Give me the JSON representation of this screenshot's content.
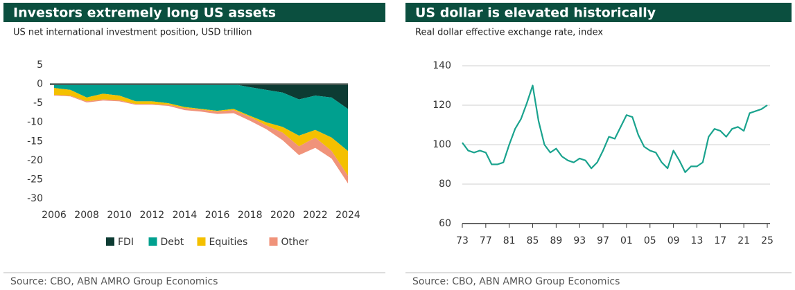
{
  "chart_data": [
    {
      "type": "area",
      "title": "Investors extremely long US assets",
      "subtitle": "US net international investment position, USD trillion",
      "source": "Source: CBO, ABN AMRO Group Economics",
      "x": [
        2006,
        2007,
        2008,
        2009,
        2010,
        2011,
        2012,
        2013,
        2014,
        2015,
        2016,
        2017,
        2018,
        2019,
        2020,
        2021,
        2022,
        2023,
        2024
      ],
      "series": [
        {
          "name": "FDI",
          "color": "#0d3b33",
          "values": [
            0,
            0,
            0,
            0,
            0,
            0,
            0,
            0,
            0,
            0,
            0,
            0,
            -0.8,
            -1.5,
            -2.2,
            -4,
            -3,
            -3.5,
            -6.5
          ]
        },
        {
          "name": "Debt",
          "color": "#00a08f",
          "values": [
            -1,
            -1.5,
            -3.5,
            -2.5,
            -3,
            -4.5,
            -4.5,
            -5,
            -6,
            -6.5,
            -7,
            -6.5,
            -7.5,
            -8.5,
            -9,
            -9.5,
            -9,
            -10.5,
            -11
          ]
        },
        {
          "name": "Equities",
          "color": "#f4c000",
          "values": [
            -1.8,
            -1.5,
            -1,
            -1.5,
            -1.2,
            -0.7,
            -0.7,
            -0.4,
            -0.3,
            -0.2,
            -0.2,
            -0.3,
            -0.3,
            -0.8,
            -1.5,
            -2.8,
            -2,
            -3.5,
            -6.5
          ]
        },
        {
          "name": "Other",
          "color": "#f0937a",
          "values": [
            -0.2,
            -0.2,
            -0.3,
            -0.3,
            -0.3,
            -0.2,
            -0.2,
            -0.3,
            -0.5,
            -0.5,
            -0.6,
            -0.8,
            -1,
            -1,
            -2,
            -2.3,
            -2.7,
            -2,
            -2
          ]
        }
      ],
      "xlim": [
        2006,
        2024
      ],
      "xticks": [
        2006,
        2008,
        2010,
        2012,
        2014,
        2016,
        2018,
        2020,
        2022,
        2024
      ],
      "ylim": [
        -30,
        5
      ],
      "yticks": [
        5,
        0,
        -5,
        -10,
        -15,
        -20,
        -25,
        -30
      ],
      "grid": false,
      "legend": "bottom"
    },
    {
      "type": "line",
      "title": "US dollar is elevated historically",
      "subtitle": "Real dollar effective exchange rate, index",
      "source": "Source: CBO, ABN AMRO Group Economics",
      "x": [
        1973,
        1974,
        1975,
        1976,
        1977,
        1978,
        1979,
        1980,
        1981,
        1982,
        1983,
        1984,
        1985,
        1986,
        1987,
        1988,
        1989,
        1990,
        1991,
        1992,
        1993,
        1994,
        1995,
        1996,
        1997,
        1998,
        1999,
        2000,
        2001,
        2002,
        2003,
        2004,
        2005,
        2006,
        2007,
        2008,
        2009,
        2010,
        2011,
        2012,
        2013,
        2014,
        2015,
        2016,
        2017,
        2018,
        2019,
        2020,
        2021,
        2022,
        2023,
        2024,
        2025
      ],
      "series": [
        {
          "name": "Real dollar effective exchange rate",
          "color": "#1aa38e",
          "values": [
            101,
            97,
            96,
            97,
            96,
            90,
            90,
            91,
            100,
            108,
            113,
            121,
            130,
            112,
            100,
            96,
            98,
            94,
            92,
            91,
            93,
            92,
            88,
            91,
            97,
            104,
            103,
            109,
            115,
            114,
            105,
            99,
            97,
            96,
            91,
            88,
            97,
            92,
            86,
            89,
            89,
            91,
            104,
            108,
            107,
            104,
            108,
            109,
            107,
            116,
            117,
            118,
            120
          ]
        }
      ],
      "xlim": [
        1973,
        2025
      ],
      "xticks": [
        {
          "value": 1973,
          "label": "73"
        },
        {
          "value": 1977,
          "label": "77"
        },
        {
          "value": 1981,
          "label": "81"
        },
        {
          "value": 1985,
          "label": "85"
        },
        {
          "value": 1989,
          "label": "89"
        },
        {
          "value": 1993,
          "label": "93"
        },
        {
          "value": 1997,
          "label": "97"
        },
        {
          "value": 2001,
          "label": "01"
        },
        {
          "value": 2005,
          "label": "05"
        },
        {
          "value": 2009,
          "label": "09"
        },
        {
          "value": 2013,
          "label": "13"
        },
        {
          "value": 2017,
          "label": "17"
        },
        {
          "value": 2021,
          "label": "21"
        },
        {
          "value": 2025,
          "label": "25"
        }
      ],
      "ylim": [
        60,
        140
      ],
      "yticks": [
        60,
        80,
        100,
        120,
        140
      ],
      "grid": true
    }
  ]
}
